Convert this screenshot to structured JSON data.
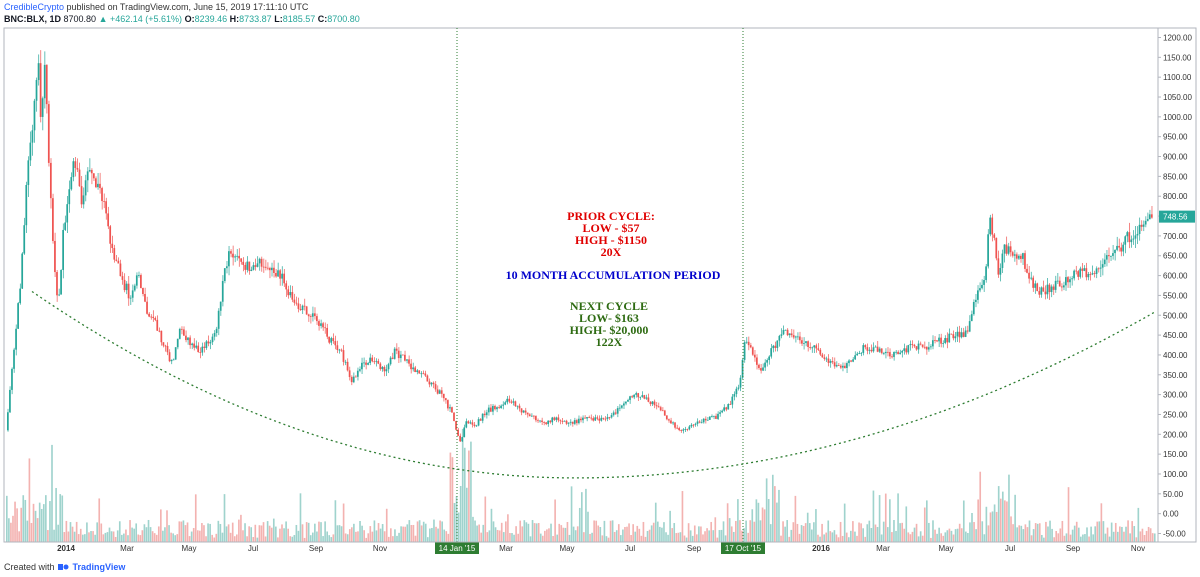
{
  "header": {
    "author": "CredibleCrypto",
    "published": " published on TradingView.com, June 15, 2019 17:11:10 UTC"
  },
  "ohlc": {
    "symbol": "BNC:BLX, 1D",
    "last": "8700.80",
    "change": "▲ +462.14 (+5.61%)",
    "open_label": "O:",
    "open": "8239.46",
    "high_label": "H:",
    "high": "8733.87",
    "low_label": "L:",
    "low": "8185.57",
    "close_label": "C:",
    "close": "8700.80"
  },
  "footer": {
    "prefix": "Created with",
    "brand": "TradingView"
  },
  "colors": {
    "up": "#26a69a",
    "down": "#ef5350",
    "vol_up": "#9fd3cd",
    "vol_down": "#f3b2b0",
    "vline": "#2e7d32",
    "curve": "#2e7d32",
    "price_badge": "#26a69a",
    "anno_red": "#e00000",
    "anno_blue": "#0000cc",
    "anno_green": "#2e6b12"
  },
  "annotations": {
    "prior": [
      "PRIOR CYCLE:",
      "LOW - $57",
      "HIGH - $1150",
      "20X"
    ],
    "accum": "10 MONTH ACCUMULATION PERIOD",
    "next": [
      "NEXT CYCLE",
      "LOW- $163",
      "HIGH- $20,000",
      "122X"
    ]
  },
  "chart_data": {
    "type": "candlestick",
    "y_ticks": [
      1200,
      1150,
      1100,
      1050,
      1000,
      950,
      900,
      850,
      800,
      750,
      700,
      650,
      600,
      550,
      500,
      450,
      400,
      350,
      300,
      250,
      200,
      150,
      100,
      50,
      0,
      -50
    ],
    "y_tick_labels": [
      "1200.00",
      "1150.00",
      "1100.00",
      "1050.00",
      "1000.00",
      "950.00",
      "900.00",
      "850.00",
      "800.00",
      "750.00",
      "700.00",
      "650.00",
      "600.00",
      "550.00",
      "500.00",
      "450.00",
      "400.00",
      "350.00",
      "300.00",
      "250.00",
      "200.00",
      "150.00",
      "100.00",
      "50.00",
      "0.00",
      "-50.00"
    ],
    "ylim": [
      -60,
      1230
    ],
    "x_ticks": [
      {
        "label": "2014",
        "bold": true
      },
      {
        "label": "Mar"
      },
      {
        "label": "May"
      },
      {
        "label": "Jul"
      },
      {
        "label": "Sep"
      },
      {
        "label": "Nov"
      },
      {
        "label": "Mar"
      },
      {
        "label": "May"
      },
      {
        "label": "Jul"
      },
      {
        "label": "Sep"
      },
      {
        "label": "2016",
        "bold": true
      },
      {
        "label": "Mar"
      },
      {
        "label": "May"
      },
      {
        "label": "Jul"
      },
      {
        "label": "Sep"
      },
      {
        "label": "Nov"
      }
    ],
    "vlines": [
      {
        "label": "14 Jan '15"
      },
      {
        "label": "17 Oct '15"
      }
    ],
    "last_price_label": "748.56",
    "last_price": 748.56,
    "price_path": [
      [
        0,
        210
      ],
      [
        0.006,
        380
      ],
      [
        0.012,
        560
      ],
      [
        0.018,
        820
      ],
      [
        0.024,
        1000
      ],
      [
        0.028,
        1160
      ],
      [
        0.031,
        960
      ],
      [
        0.034,
        1150
      ],
      [
        0.037,
        900
      ],
      [
        0.04,
        760
      ],
      [
        0.043,
        600
      ],
      [
        0.046,
        520
      ],
      [
        0.05,
        700
      ],
      [
        0.055,
        820
      ],
      [
        0.06,
        900
      ],
      [
        0.066,
        780
      ],
      [
        0.072,
        880
      ],
      [
        0.078,
        820
      ],
      [
        0.085,
        800
      ],
      [
        0.092,
        680
      ],
      [
        0.1,
        600
      ],
      [
        0.108,
        550
      ],
      [
        0.115,
        600
      ],
      [
        0.122,
        520
      ],
      [
        0.13,
        480
      ],
      [
        0.138,
        420
      ],
      [
        0.145,
        380
      ],
      [
        0.152,
        460
      ],
      [
        0.16,
        430
      ],
      [
        0.168,
        410
      ],
      [
        0.176,
        430
      ],
      [
        0.184,
        460
      ],
      [
        0.19,
        600
      ],
      [
        0.196,
        670
      ],
      [
        0.204,
        640
      ],
      [
        0.212,
        620
      ],
      [
        0.222,
        640
      ],
      [
        0.232,
        610
      ],
      [
        0.242,
        590
      ],
      [
        0.252,
        520
      ],
      [
        0.262,
        510
      ],
      [
        0.272,
        490
      ],
      [
        0.282,
        440
      ],
      [
        0.292,
        410
      ],
      [
        0.302,
        330
      ],
      [
        0.31,
        370
      ],
      [
        0.32,
        390
      ],
      [
        0.33,
        360
      ],
      [
        0.34,
        410
      ],
      [
        0.35,
        380
      ],
      [
        0.36,
        360
      ],
      [
        0.37,
        330
      ],
      [
        0.38,
        300
      ],
      [
        0.39,
        250
      ],
      [
        0.396,
        175
      ],
      [
        0.402,
        235
      ],
      [
        0.41,
        225
      ],
      [
        0.42,
        260
      ],
      [
        0.43,
        270
      ],
      [
        0.44,
        290
      ],
      [
        0.45,
        260
      ],
      [
        0.46,
        245
      ],
      [
        0.47,
        230
      ],
      [
        0.48,
        240
      ],
      [
        0.49,
        225
      ],
      [
        0.5,
        235
      ],
      [
        0.51,
        240
      ],
      [
        0.52,
        240
      ],
      [
        0.53,
        250
      ],
      [
        0.54,
        280
      ],
      [
        0.55,
        300
      ],
      [
        0.56,
        285
      ],
      [
        0.57,
        270
      ],
      [
        0.58,
        230
      ],
      [
        0.59,
        210
      ],
      [
        0.6,
        225
      ],
      [
        0.61,
        235
      ],
      [
        0.62,
        245
      ],
      [
        0.63,
        270
      ],
      [
        0.64,
        320
      ],
      [
        0.645,
        440
      ],
      [
        0.652,
        400
      ],
      [
        0.66,
        360
      ],
      [
        0.67,
        420
      ],
      [
        0.68,
        460
      ],
      [
        0.69,
        440
      ],
      [
        0.7,
        430
      ],
      [
        0.71,
        410
      ],
      [
        0.72,
        380
      ],
      [
        0.73,
        370
      ],
      [
        0.74,
        400
      ],
      [
        0.75,
        420
      ],
      [
        0.76,
        415
      ],
      [
        0.77,
        400
      ],
      [
        0.78,
        410
      ],
      [
        0.79,
        420
      ],
      [
        0.8,
        420
      ],
      [
        0.81,
        430
      ],
      [
        0.82,
        440
      ],
      [
        0.83,
        450
      ],
      [
        0.84,
        460
      ],
      [
        0.845,
        530
      ],
      [
        0.85,
        560
      ],
      [
        0.855,
        620
      ],
      [
        0.858,
        760
      ],
      [
        0.862,
        700
      ],
      [
        0.866,
        600
      ],
      [
        0.872,
        670
      ],
      [
        0.88,
        660
      ],
      [
        0.888,
        640
      ],
      [
        0.895,
        580
      ],
      [
        0.902,
        560
      ],
      [
        0.91,
        570
      ],
      [
        0.92,
        580
      ],
      [
        0.93,
        600
      ],
      [
        0.94,
        610
      ],
      [
        0.95,
        610
      ],
      [
        0.96,
        640
      ],
      [
        0.97,
        660
      ],
      [
        0.98,
        700
      ],
      [
        0.99,
        720
      ],
      [
        0.995,
        750
      ],
      [
        1.0,
        748
      ]
    ],
    "curve": {
      "type": "parabola",
      "left_value": 560,
      "min_value": 90,
      "right_value": 510
    }
  }
}
